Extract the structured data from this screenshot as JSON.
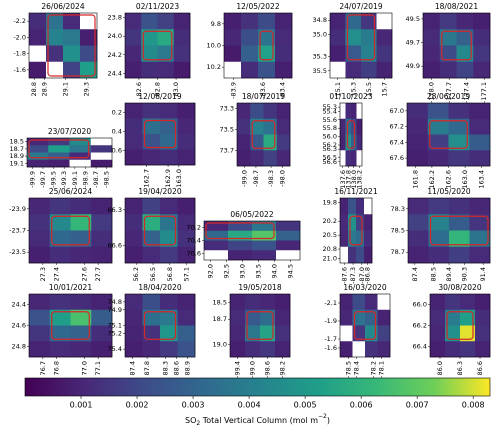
{
  "chart_data": [
    {
      "type": "heatmap",
      "title": "26/06/2024",
      "xticks": [
        28.8,
        28.9,
        29.1,
        29.3
      ],
      "xlim": [
        28.75,
        29.4
      ],
      "yticks": [
        -2.2,
        {
          "value": -2,
          "label": "-2.0"
        },
        -1.8,
        -1.6
      ],
      "ylim": [
        -2.3,
        -1.5
      ],
      "values": [
        [
          0.0012,
          0.0035,
          0.0011,
          null
        ],
        [
          0.0009,
          0.0042,
          0.0038,
          0.0008
        ],
        [
          null,
          0.0013,
          0.0047,
          0.0021
        ],
        [
          0.0007,
          null,
          0.0019,
          0.0052
        ]
      ]
    },
    {
      "type": "heatmap",
      "title": "02/11/2023",
      "xticks": [
        82.6,
        82.8,
        {
          "value": 83,
          "label": "83.0"
        }
      ],
      "xlim": [
        82.45,
        83.15
      ],
      "yticks": [
        23.8,
        {
          "value": 24,
          "label": "24.0"
        },
        24.2,
        24.4
      ],
      "ylim": [
        23.75,
        24.45
      ],
      "values": [
        [
          0.0011,
          0.0024,
          0.0018,
          0.0009
        ],
        [
          0.0014,
          0.0049,
          0.0056,
          0.0012
        ],
        [
          0.001,
          0.0045,
          0.0038,
          0.0013
        ],
        [
          0.0008,
          0.0012,
          0.0011,
          0.0007
        ]
      ]
    },
    {
      "type": "heatmap",
      "title": "12/05/2022",
      "xticks": [
        -83.9,
        -83.6,
        -83.4
      ],
      "xlim": [
        -84.0,
        -83.3
      ],
      "yticks": [
        9.8,
        {
          "value": 10,
          "label": "10.0"
        },
        10.2
      ],
      "ylim": [
        9.7,
        10.3
      ],
      "values": [
        [
          0.0008,
          0.0013,
          0.0021,
          0.0009
        ],
        [
          0.001,
          0.0022,
          0.0036,
          0.0011
        ],
        [
          0.0007,
          0.0028,
          0.0053,
          0.0012
        ],
        [
          null,
          0.0012,
          0.0024,
          0.0008
        ]
      ]
    },
    {
      "type": "heatmap",
      "title": "24/07/2019",
      "xticks": [
        15.1,
        15.3,
        15.5,
        15.7
      ],
      "xlim": [
        15.0,
        15.8
      ],
      "yticks": [
        34.8,
        {
          "value": 35,
          "label": "35.0"
        },
        35.3,
        35.5
      ],
      "ylim": [
        34.7,
        35.6
      ],
      "values": [
        [
          0.0009,
          0.0031,
          0.0015,
          null
        ],
        [
          0.0012,
          0.0046,
          0.0039,
          0.001
        ],
        [
          0.0008,
          0.0026,
          0.0041,
          0.0014
        ],
        [
          null,
          0.0011,
          0.0017,
          0.0009
        ]
      ]
    },
    {
      "type": "heatmap",
      "title": "18/08/2021",
      "xticks": [
        {
          "value": -178,
          "label": "-178.0"
        },
        -177.7,
        -177.4,
        -177.1
      ],
      "xlim": [
        -178.15,
        -177.0
      ],
      "yticks": [
        49.5,
        49.7,
        49.9
      ],
      "ylim": [
        49.45,
        50.0
      ],
      "values": [
        [
          0.0009,
          0.0016,
          0.001,
          0.0008
        ],
        [
          0.0011,
          0.0037,
          0.0029,
          0.0012
        ],
        [
          0.001,
          0.0021,
          0.0044,
          0.0015
        ],
        [
          0.0008,
          0.0012,
          0.0019,
          0.001
        ]
      ]
    },
    {
      "type": "heatmap",
      "title": "23/07/2020",
      "xticks": [
        -99.9,
        -99.7,
        -99.5,
        -99.3,
        -99.1,
        -98.9,
        -98.7,
        -98.5
      ],
      "xlim": [
        -100.0,
        -98.4
      ],
      "yticks": [
        18.5,
        18.7,
        18.9,
        19.1
      ],
      "ylim": [
        18.4,
        19.2
      ],
      "values": [
        [
          0.001,
          0.0016,
          0.0045,
          null
        ],
        [
          0.0021,
          0.0052,
          0.0037,
          0.0014
        ],
        [
          0.0038,
          0.0028,
          0.0011,
          null
        ],
        [
          0.0009,
          0.0008,
          null,
          0.0007
        ]
      ]
    },
    {
      "type": "heatmap",
      "title": "12/08/2019",
      "xticks": [
        162.7,
        162.9,
        {
          "value": 163,
          "label": "163.0"
        }
      ],
      "xlim": [
        162.5,
        163.15
      ],
      "yticks": [
        0.2,
        0.4,
        0.6
      ],
      "ylim": [
        0.1,
        0.75
      ],
      "values": [
        [
          0.0009,
          0.0013,
          0.0011,
          0.0008
        ],
        [
          0.0012,
          0.0034,
          0.0029,
          0.001
        ],
        [
          0.0011,
          0.0024,
          0.0031,
          0.0012
        ],
        [
          0.0008,
          0.001,
          0.0012,
          0.0009
        ]
      ]
    },
    {
      "type": "heatmap",
      "title": "18/07/2019",
      "xticks": [
        {
          "value": -99,
          "label": "-99.0"
        },
        -98.7,
        -98.3,
        {
          "value": -98,
          "label": "-98.0"
        }
      ],
      "xlim": [
        -99.2,
        -97.8
      ],
      "yticks": [
        73.3,
        73.5,
        73.7
      ],
      "ylim": [
        73.25,
        73.85
      ],
      "values": [
        [
          0.001,
          0.0022,
          0.0014,
          0.0009
        ],
        [
          0.0013,
          0.0041,
          0.0035,
          0.0011
        ],
        [
          0.0009,
          0.0026,
          0.0057,
          0.0016
        ],
        [
          0.0008,
          0.0011,
          0.0018,
          0.001
        ]
      ]
    },
    {
      "type": "heatmap",
      "title": "01/10/2023",
      "xticks": [
        137.6,
        137.8,
        {
          "value": 138,
          "label": "138.0"
        },
        138.2
      ],
      "xlim": [
        137.5,
        138.3
      ],
      "yticks": [
        55.3,
        55.4,
        55.6,
        55.8,
        {
          "value": 56,
          "label": "56.0"
        },
        56.2,
        56.3,
        56.5,
        56.6
      ],
      "ylim": [
        55.2,
        56.7
      ],
      "values": [
        [
          null,
          0.0011,
          0.0009,
          null
        ],
        [
          0.001,
          0.0034,
          0.0021,
          0.0008
        ],
        [
          0.0009,
          0.0048,
          0.003,
          0.0011
        ],
        [
          null,
          0.0012,
          0.001,
          null
        ]
      ]
    },
    {
      "type": "heatmap",
      "title": "28/06/2019",
      "xticks": [
        161.8,
        162.2,
        162.6,
        {
          "value": 163,
          "label": "163.0"
        },
        163.4
      ],
      "xlim": [
        161.6,
        163.6
      ],
      "yticks": [
        {
          "value": 67,
          "label": "67.0"
        },
        67.2,
        67.4,
        67.6
      ],
      "ylim": [
        66.9,
        67.7
      ],
      "values": [
        [
          0.0012,
          0.0024,
          0.0013,
          0.0009
        ],
        [
          0.001,
          0.0039,
          0.0031,
          0.0011
        ],
        [
          0.0009,
          0.0017,
          0.0046,
          0.0027
        ],
        [
          0.0008,
          0.001,
          0.0015,
          0.0012
        ]
      ]
    },
    {
      "type": "heatmap",
      "title": "25/06/2024",
      "xticks": [
        27.3,
        27.4,
        27.6,
        27.7
      ],
      "xlim": [
        27.2,
        27.8
      ],
      "yticks": [
        -23.9,
        -23.7,
        -23.5
      ],
      "ylim": [
        -24.0,
        -23.4
      ],
      "values": [
        [
          0.001,
          0.0014,
          0.0012,
          0.0009
        ],
        [
          0.0013,
          0.0044,
          0.0062,
          0.0016
        ],
        [
          0.0011,
          0.0031,
          0.0028,
          0.0012
        ],
        [
          0.0008,
          0.0012,
          0.001,
          0.0009
        ]
      ]
    },
    {
      "type": "heatmap",
      "title": "19/04/2020",
      "xticks": [
        56.2,
        56.5,
        56.8,
        57.1
      ],
      "xlim": [
        56.0,
        57.25
      ],
      "yticks": [
        66.3,
        66.6
      ],
      "ylim": [
        66.2,
        66.75
      ],
      "values": [
        [
          0.0009,
          0.0018,
          0.0011,
          0.0008
        ],
        [
          0.0012,
          0.0058,
          0.0036,
          0.0011
        ],
        [
          0.001,
          0.0029,
          0.0045,
          0.0013
        ],
        [
          0.0008,
          0.0011,
          0.0016,
          0.0009
        ]
      ]
    },
    {
      "type": "heatmap",
      "title": "06/05/2022",
      "xticks": [
        {
          "value": 92,
          "label": "92.0"
        },
        92.5,
        {
          "value": 93,
          "label": "93.0"
        },
        93.5,
        {
          "value": 94,
          "label": "94.0"
        },
        94.5
      ],
      "xlim": [
        91.8,
        94.8
      ],
      "yticks": [
        70.2,
        70.4,
        70.6
      ],
      "ylim": [
        70.1,
        70.7
      ],
      "values": [
        [
          0.001,
          0.0021,
          0.0037,
          0.0014
        ],
        [
          0.0031,
          0.0056,
          0.0068,
          0.0029
        ],
        [
          0.0012,
          0.0019,
          0.0024,
          0.001
        ],
        [
          null,
          0.0009,
          0.0011,
          null
        ]
      ]
    },
    {
      "type": "heatmap",
      "title": "16/11/2021",
      "xticks": [
        -87.6,
        -87.3,
        {
          "value": -87,
          "label": "-87.0"
        },
        -86.8
      ],
      "xlim": [
        -87.75,
        -86.65
      ],
      "yticks": [
        19.8,
        20.2,
        20.5,
        20.8,
        {
          "value": 21,
          "label": "21.0"
        }
      ],
      "ylim": [
        19.7,
        21.1
      ],
      "values": [
        [
          0.0009,
          0.0024,
          0.0012,
          null
        ],
        [
          0.0011,
          0.0047,
          0.0018,
          0.0009
        ],
        [
          0.001,
          0.0038,
          0.0033,
          0.0012
        ],
        [
          null,
          0.0013,
          0.0021,
          0.0008
        ]
      ]
    },
    {
      "type": "heatmap",
      "title": "11/05/2020",
      "xticks": [
        87.4,
        88.5,
        89.4,
        90.3,
        91.4
      ],
      "xlim": [
        87.0,
        91.8
      ],
      "yticks": [
        78.3,
        78.5,
        78.7
      ],
      "ylim": [
        78.2,
        78.8
      ],
      "values": [
        [
          0.0011,
          0.0016,
          0.0013,
          0.001
        ],
        [
          0.0018,
          0.0042,
          0.0027,
          0.0014
        ],
        [
          0.0012,
          0.0033,
          0.0061,
          0.0036
        ],
        [
          0.0009,
          0.0012,
          0.0017,
          0.0011
        ]
      ]
    },
    {
      "type": "heatmap",
      "title": "10/01/2021",
      "xticks": [
        76.7,
        76.8,
        {
          "value": 77,
          "label": "77.0"
        },
        77.1
      ],
      "xlim": [
        76.6,
        77.2
      ],
      "yticks": [
        24.4,
        24.6,
        24.8
      ],
      "ylim": [
        24.3,
        24.9
      ],
      "values": [
        [
          0.001,
          0.0013,
          0.0012,
          0.0009
        ],
        [
          0.0024,
          0.0052,
          0.0066,
          0.0027
        ],
        [
          0.0014,
          0.0031,
          0.0029,
          0.0012
        ],
        [
          0.0009,
          0.0011,
          0.001,
          0.0008
        ]
      ]
    },
    {
      "type": "heatmap",
      "title": "18/04/2020",
      "xticks": [
        87.4,
        87.8,
        88.3,
        88.6,
        88.9
      ],
      "xlim": [
        87.2,
        89.1
      ],
      "yticks": [
        74.8,
        74.9,
        75.1,
        75.2,
        75.4
      ],
      "ylim": [
        74.7,
        75.5
      ],
      "values": [
        [
          0.0011,
          0.0022,
          0.0012,
          0.0009
        ],
        [
          0.001,
          0.0034,
          0.0038,
          0.0011
        ],
        [
          0.0009,
          0.0013,
          0.0049,
          0.0028
        ],
        [
          0.0008,
          0.001,
          0.0016,
          0.0024
        ]
      ]
    },
    {
      "type": "heatmap",
      "title": "19/05/2018",
      "xticks": [
        -99.4,
        {
          "value": -99,
          "label": "-99.0"
        },
        -98.6,
        -98.2
      ],
      "xlim": [
        -99.6,
        -98.0
      ],
      "yticks": [
        18.5,
        18.7,
        {
          "value": 19,
          "label": "19.0"
        }
      ],
      "ylim": [
        18.4,
        19.15
      ],
      "values": [
        [
          0.0009,
          0.0012,
          0.001,
          0.0008
        ],
        [
          0.0011,
          0.0026,
          0.0033,
          0.001
        ],
        [
          0.001,
          0.0037,
          0.0054,
          0.0013
        ],
        [
          0.0008,
          0.0012,
          0.0015,
          0.0009
        ]
      ]
    },
    {
      "type": "heatmap",
      "title": "16/03/2020",
      "xticks": [
        -78.5,
        -78.4,
        -78.2,
        -78.1
      ],
      "xlim": [
        -78.6,
        -78.0
      ],
      "yticks": [
        -2.1,
        -1.9,
        -1.7,
        -1.6
      ],
      "ylim": [
        -2.2,
        -1.5
      ],
      "values": [
        [
          0.0009,
          0.0021,
          0.0011,
          null
        ],
        [
          0.001,
          0.0035,
          0.0029,
          0.0009
        ],
        [
          null,
          0.0014,
          0.0044,
          0.0018
        ],
        [
          0.0008,
          null,
          0.0013,
          0.001
        ]
      ]
    },
    {
      "type": "heatmap",
      "title": "30/08/2020",
      "xticks": [
        {
          "value": 86,
          "label": "86.0"
        },
        86.3,
        86.6
      ],
      "xlim": [
        85.85,
        86.75
      ],
      "yticks": [
        {
          "value": 66,
          "label": "66.0"
        },
        66.2,
        66.4
      ],
      "ylim": [
        65.9,
        66.5
      ],
      "values": [
        [
          0.0009,
          0.0014,
          0.0011,
          0.0008
        ],
        [
          0.0011,
          0.0039,
          0.0052,
          0.0012
        ],
        [
          0.001,
          0.0047,
          0.0081,
          0.0013
        ],
        [
          0.0008,
          0.0012,
          0.0014,
          0.0009
        ]
      ]
    },
    {
      "type": "colorbar",
      "colormap": "viridis",
      "label": [
        "SO",
        "2",
        " Total Vertical Column (mol m",
        "−2",
        ")"
      ],
      "clim": [
        0,
        0.0083
      ],
      "ticks": [
        0.001,
        0.002,
        0.003,
        0.004,
        0.005,
        0.006,
        0.007,
        0.008
      ]
    }
  ]
}
